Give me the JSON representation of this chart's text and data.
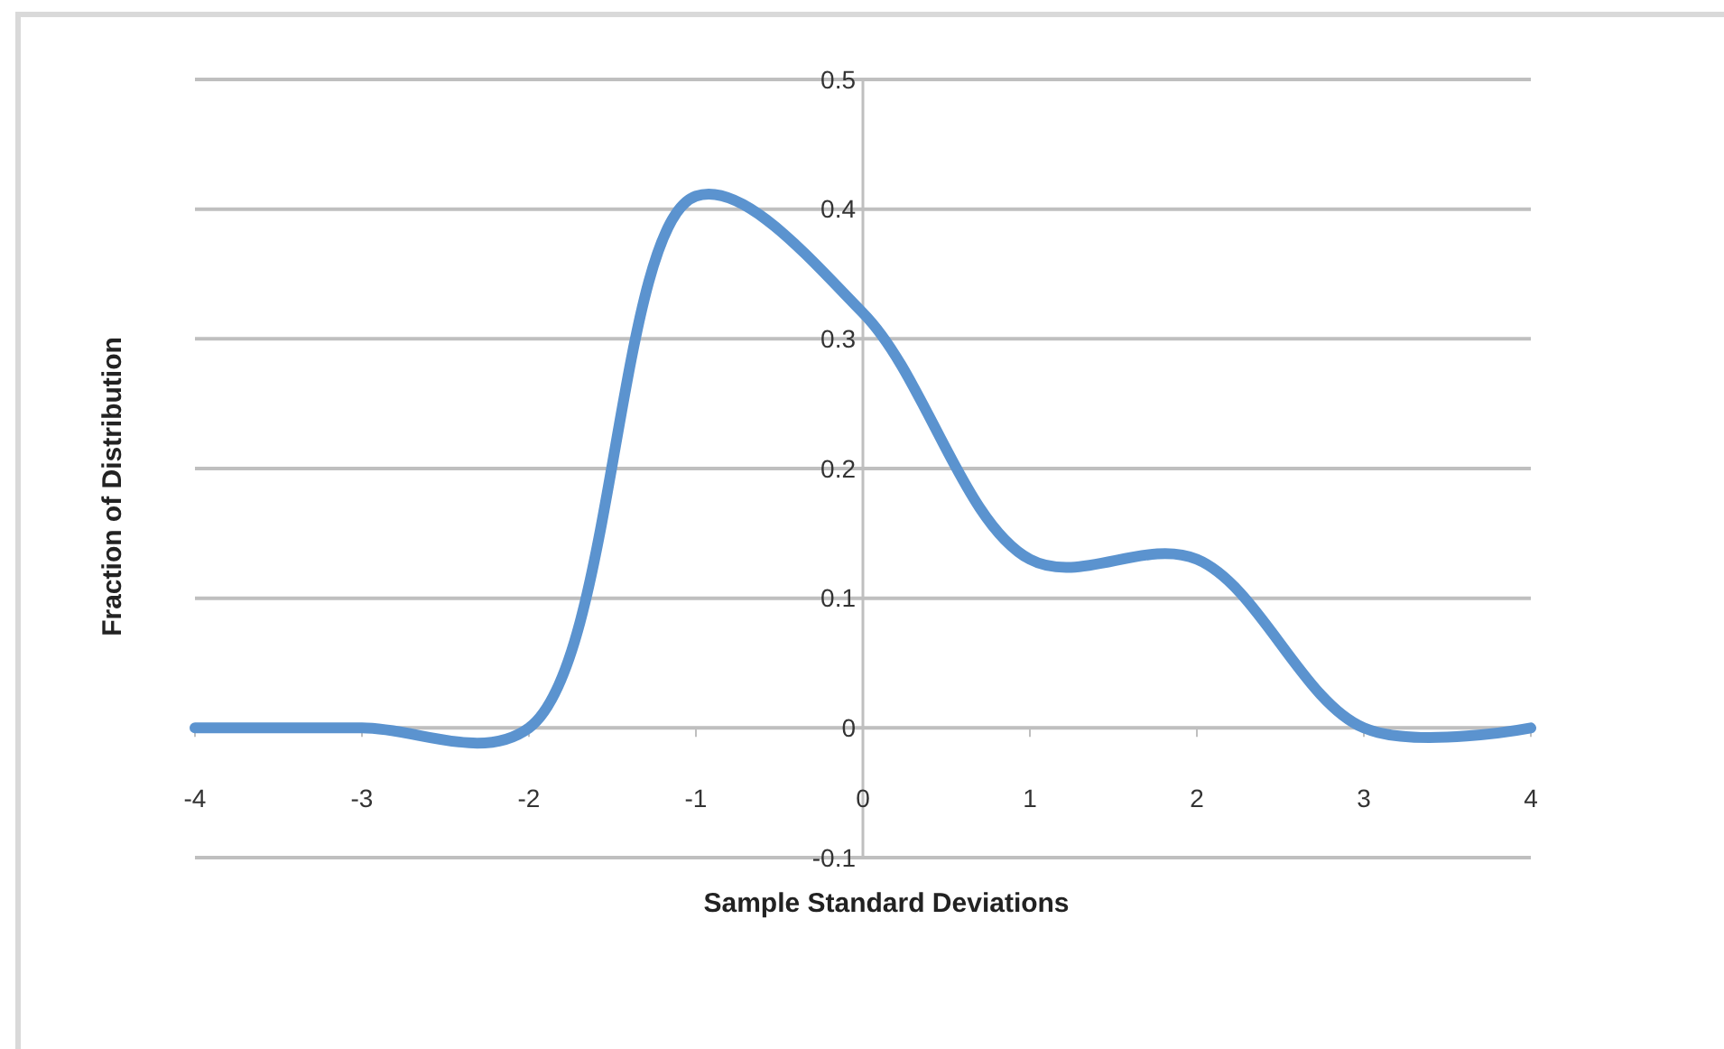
{
  "chart_data": {
    "type": "line",
    "xlabel": "Sample Standard Deviations",
    "ylabel": "Fraction of Distribution",
    "x": [
      -4,
      -3,
      -2,
      -1,
      0,
      1,
      2,
      3,
      4
    ],
    "series": [
      {
        "color": "#5b93cf",
        "values": [
          0,
          0,
          0,
          0.41,
          0.32,
          0.13,
          0.13,
          0,
          0
        ]
      }
    ],
    "xlim": [
      -4,
      4
    ],
    "xticks": [
      -4,
      -3,
      -2,
      -1,
      0,
      1,
      2,
      3,
      4
    ],
    "ylim": [
      -0.1,
      0.5
    ],
    "yticks": [
      -0.1,
      0,
      0.1,
      0.2,
      0.3,
      0.4,
      0.5
    ],
    "grid": "y",
    "marker": "none",
    "line_style": "solid"
  }
}
